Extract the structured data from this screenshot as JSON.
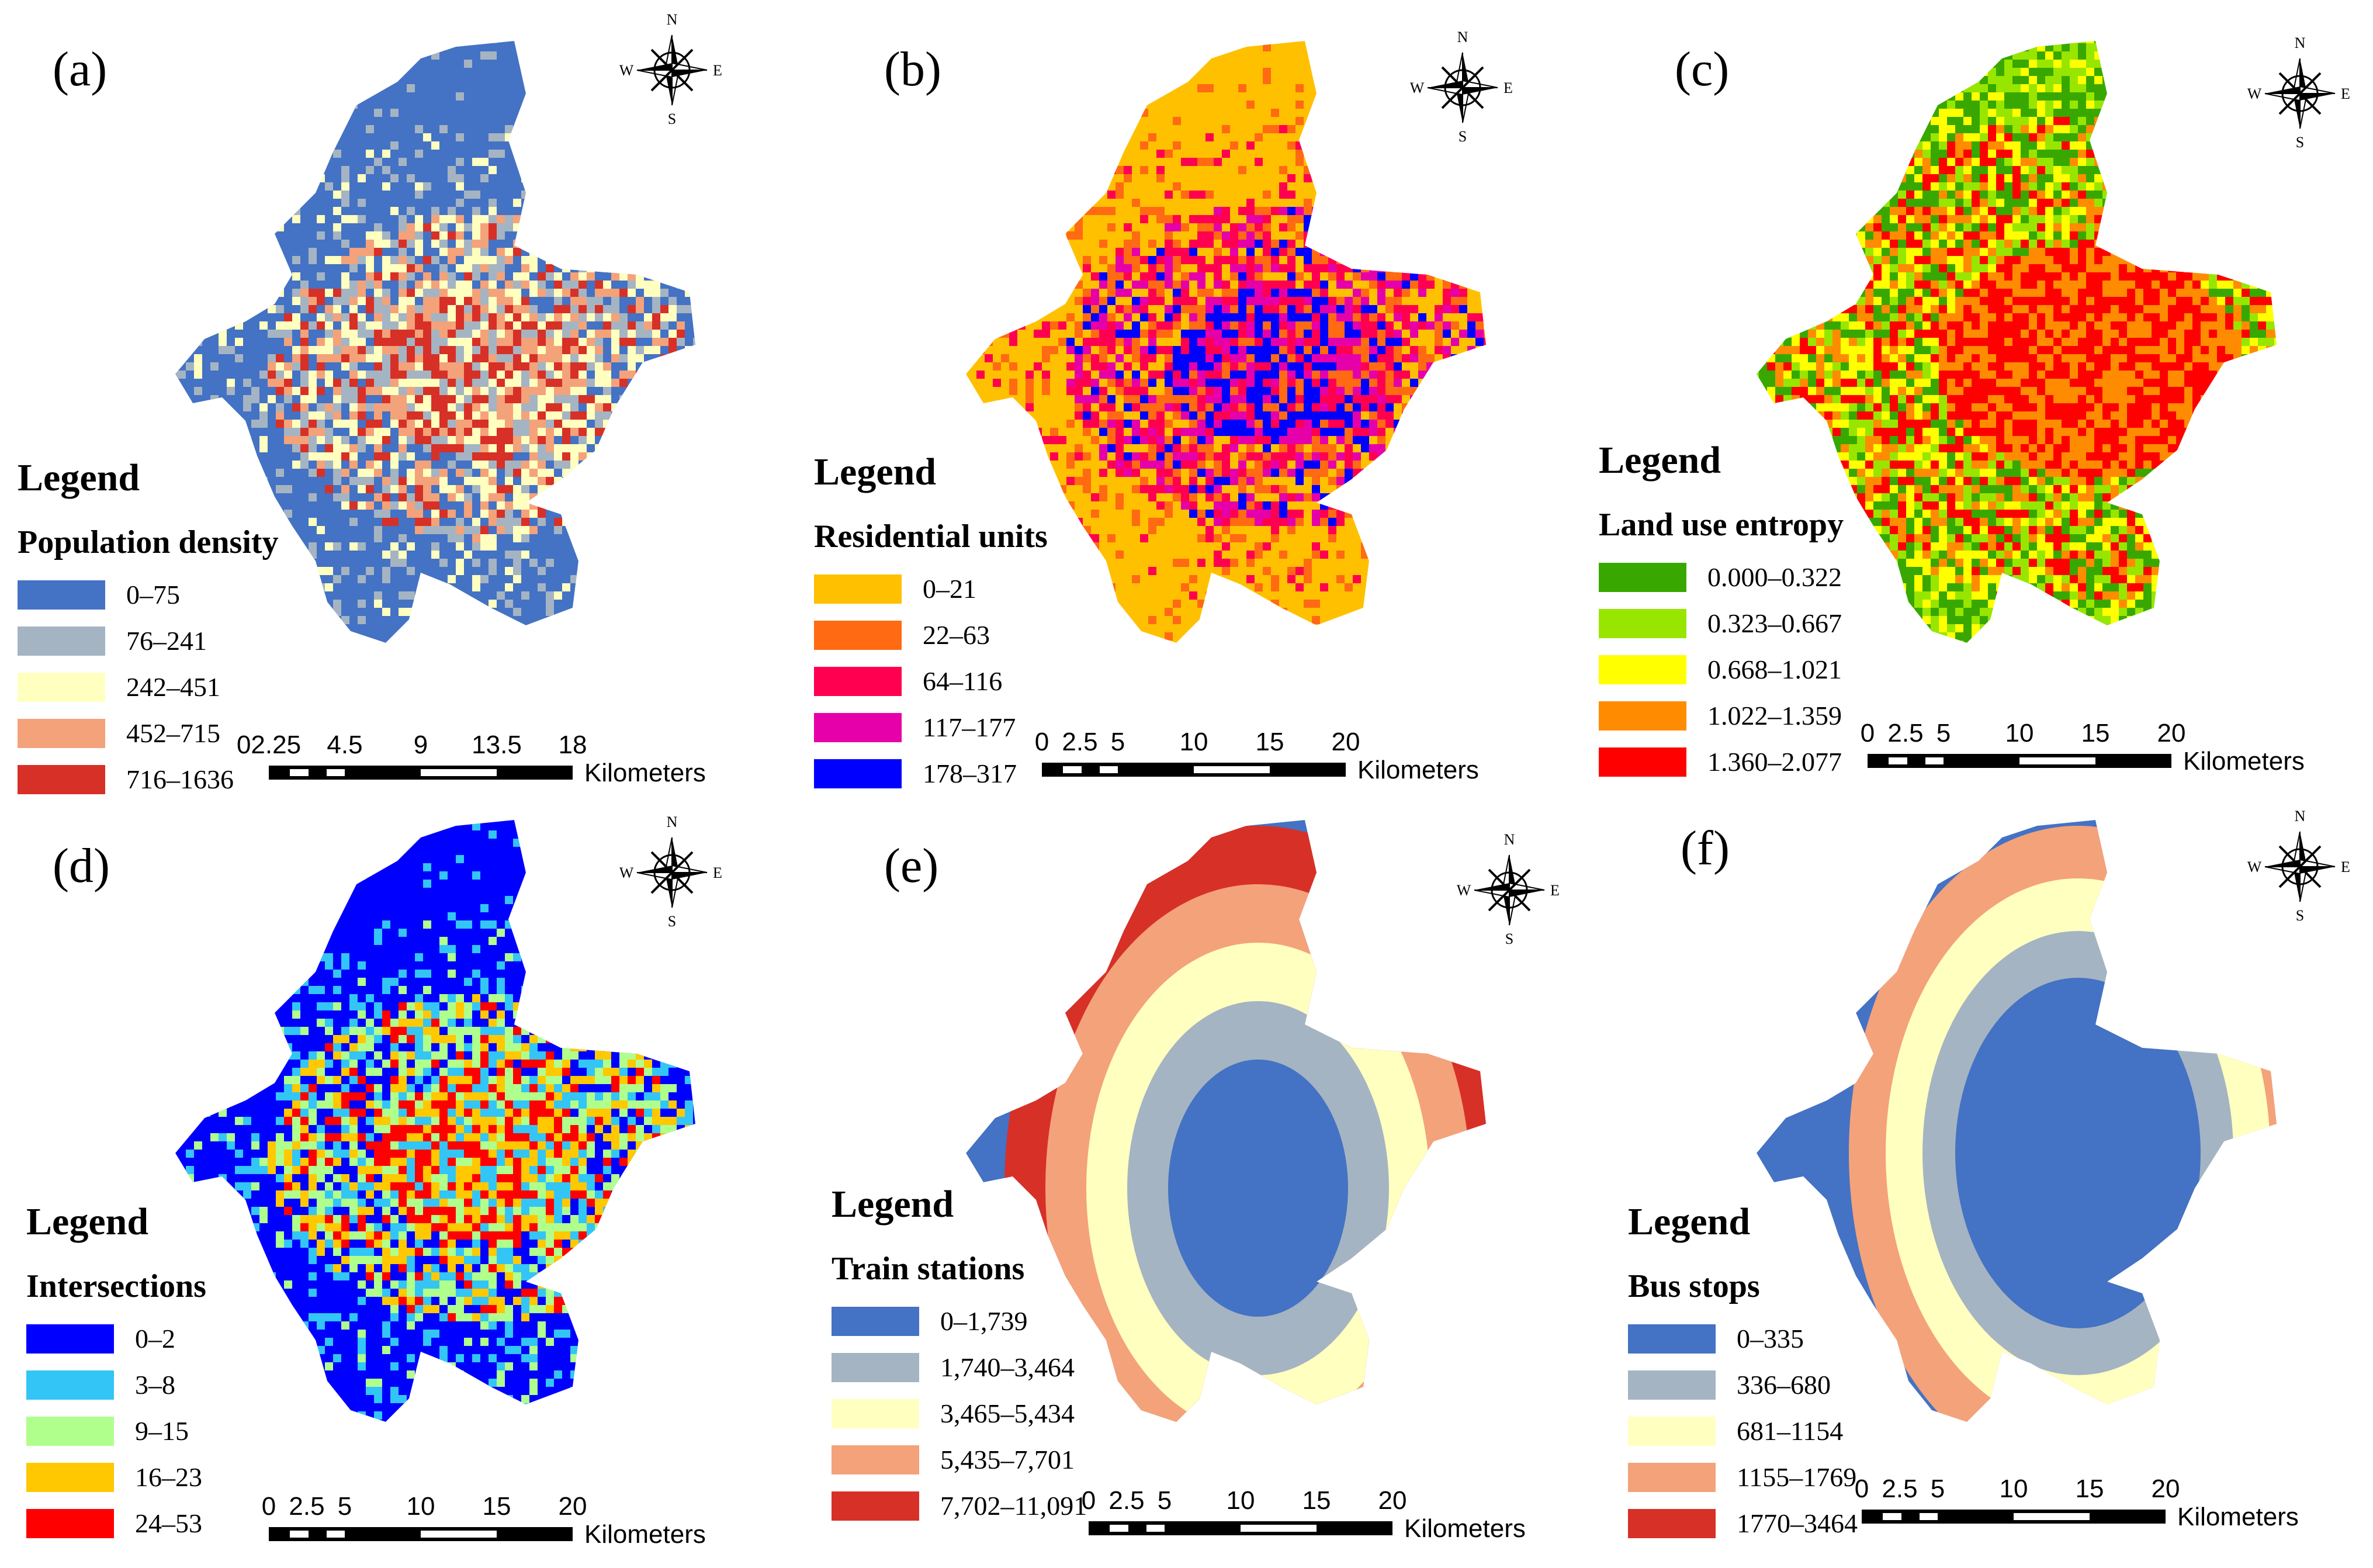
{
  "shared_scale_ticks": [
    "0",
    "2.5",
    "5",
    "10",
    "15",
    "20"
  ],
  "shared_scale_unit": "Kilometers",
  "compass": {
    "n": "N",
    "s": "S",
    "e": "E",
    "w": "W"
  },
  "legend_title": "Legend",
  "panels": [
    {
      "label": "(a)",
      "variable": "Population density",
      "scale_ticks": [
        "02.25",
        "4.5",
        "9",
        "13.5",
        "18"
      ],
      "base_color": "#4472C4",
      "classes": [
        {
          "label": "0–75",
          "color": "#4472C4"
        },
        {
          "label": "76–241",
          "color": "#A5B4C2"
        },
        {
          "label": "242–451",
          "color": "#FFFFC0"
        },
        {
          "label": "452–715",
          "color": "#F4A27A"
        },
        {
          "label": "716–1636",
          "color": "#D73027"
        }
      ]
    },
    {
      "label": "(b)",
      "variable": "Residential units",
      "base_color": "#FFC000",
      "classes": [
        {
          "label": "0–21",
          "color": "#FFC000"
        },
        {
          "label": "22–63",
          "color": "#FF6A13"
        },
        {
          "label": "64–116",
          "color": "#FF0050"
        },
        {
          "label": "117–177",
          "color": "#E600A9"
        },
        {
          "label": "178–317",
          "color": "#0000FF"
        }
      ]
    },
    {
      "label": "(c)",
      "variable": "Land use entropy",
      "base_color": "#38A800",
      "classes": [
        {
          "label": "0.000–0.322",
          "color": "#38A800"
        },
        {
          "label": "0.323–0.667",
          "color": "#98E600"
        },
        {
          "label": "0.668–1.021",
          "color": "#FFFF00"
        },
        {
          "label": "1.022–1.359",
          "color": "#FF8C00"
        },
        {
          "label": "1.360–2.077",
          "color": "#FF0000"
        }
      ]
    },
    {
      "label": "(d)",
      "variable": "Intersections",
      "base_color": "#0000FF",
      "classes": [
        {
          "label": "0–2",
          "color": "#0000FF"
        },
        {
          "label": "3–8",
          "color": "#33C5F5"
        },
        {
          "label": "9–15",
          "color": "#B0FF8C"
        },
        {
          "label": "16–23",
          "color": "#FFC800"
        },
        {
          "label": "24–53",
          "color": "#FF0000"
        }
      ]
    },
    {
      "label": "(e)",
      "variable": "Train stations",
      "base_color": "#4472C4",
      "classes": [
        {
          "label": "0–1,739",
          "color": "#4472C4"
        },
        {
          "label": "1,740–3,464",
          "color": "#A5B4C2"
        },
        {
          "label": "3,465–5,434",
          "color": "#FFFFC0"
        },
        {
          "label": "5,435–7,701",
          "color": "#F4A27A"
        },
        {
          "label": "7,702–11,091",
          "color": "#D73027"
        }
      ]
    },
    {
      "label": "(f)",
      "variable": "Bus stops",
      "base_color": "#4472C4",
      "classes": [
        {
          "label": "0–335",
          "color": "#4472C4"
        },
        {
          "label": "336–680",
          "color": "#A5B4C2"
        },
        {
          "label": "681–1154",
          "color": "#FFFFC0"
        },
        {
          "label": "1155–1769",
          "color": "#F4A27A"
        },
        {
          "label": "1770–3464",
          "color": "#D73027"
        }
      ]
    }
  ]
}
